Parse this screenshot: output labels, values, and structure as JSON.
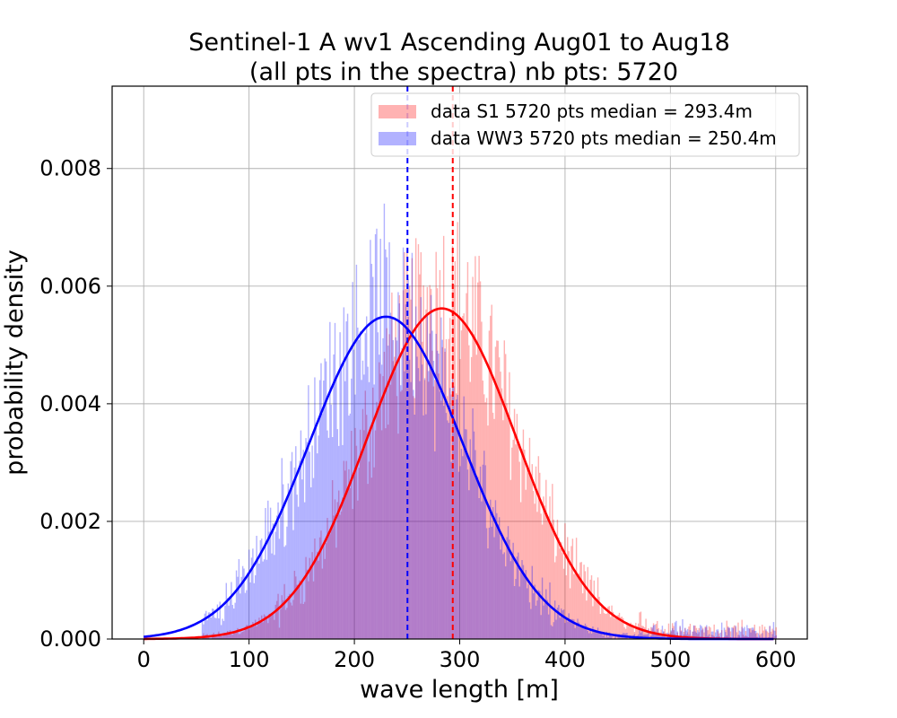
{
  "chart_data": {
    "type": "bar",
    "title_line1": "Sentinel-1 A wv1 Ascending Aug01 to Aug18",
    "title_line2": "(all pts in the spectra) nb pts: 5720",
    "xlabel": "wave length [m]",
    "ylabel": "probability density",
    "xlim": [
      -30,
      630
    ],
    "ylim": [
      0,
      0.0094
    ],
    "xticks": [
      0,
      100,
      200,
      300,
      400,
      500,
      600
    ],
    "xtick_labels": [
      "0",
      "100",
      "200",
      "300",
      "400",
      "500",
      "600"
    ],
    "yticks": [
      0,
      0.002,
      0.004,
      0.006,
      0.008
    ],
    "ytick_labels": [
      "0.000",
      "0.002",
      "0.004",
      "0.006",
      "0.008"
    ],
    "grid": true,
    "legend_position": "top-right",
    "series": [
      {
        "name": "data S1 5720 pts median = 293.4m",
        "kind": "histogram",
        "color": "#ff0000",
        "alpha": 0.3,
        "median": 293.4,
        "fit": {
          "mean": 283,
          "std": 71,
          "peak": 0.00562
        }
      },
      {
        "name": "data WW3 5720 pts median = 250.4m",
        "kind": "histogram",
        "color": "#0000ff",
        "alpha": 0.3,
        "median": 250.4,
        "fit": {
          "mean": 230,
          "std": 73,
          "peak": 0.00548
        }
      }
    ],
    "fit_lines": [
      {
        "series": "S1",
        "color": "#ff0000",
        "mean": 283,
        "std": 71,
        "peak": 0.00562
      },
      {
        "series": "WW3",
        "color": "#0000ff",
        "mean": 230,
        "std": 73,
        "peak": 0.00548
      }
    ],
    "median_lines": [
      {
        "x": 293.4,
        "color": "#ff0000",
        "style": "dashed"
      },
      {
        "x": 250.4,
        "color": "#0000ff",
        "style": "dashed"
      }
    ]
  }
}
